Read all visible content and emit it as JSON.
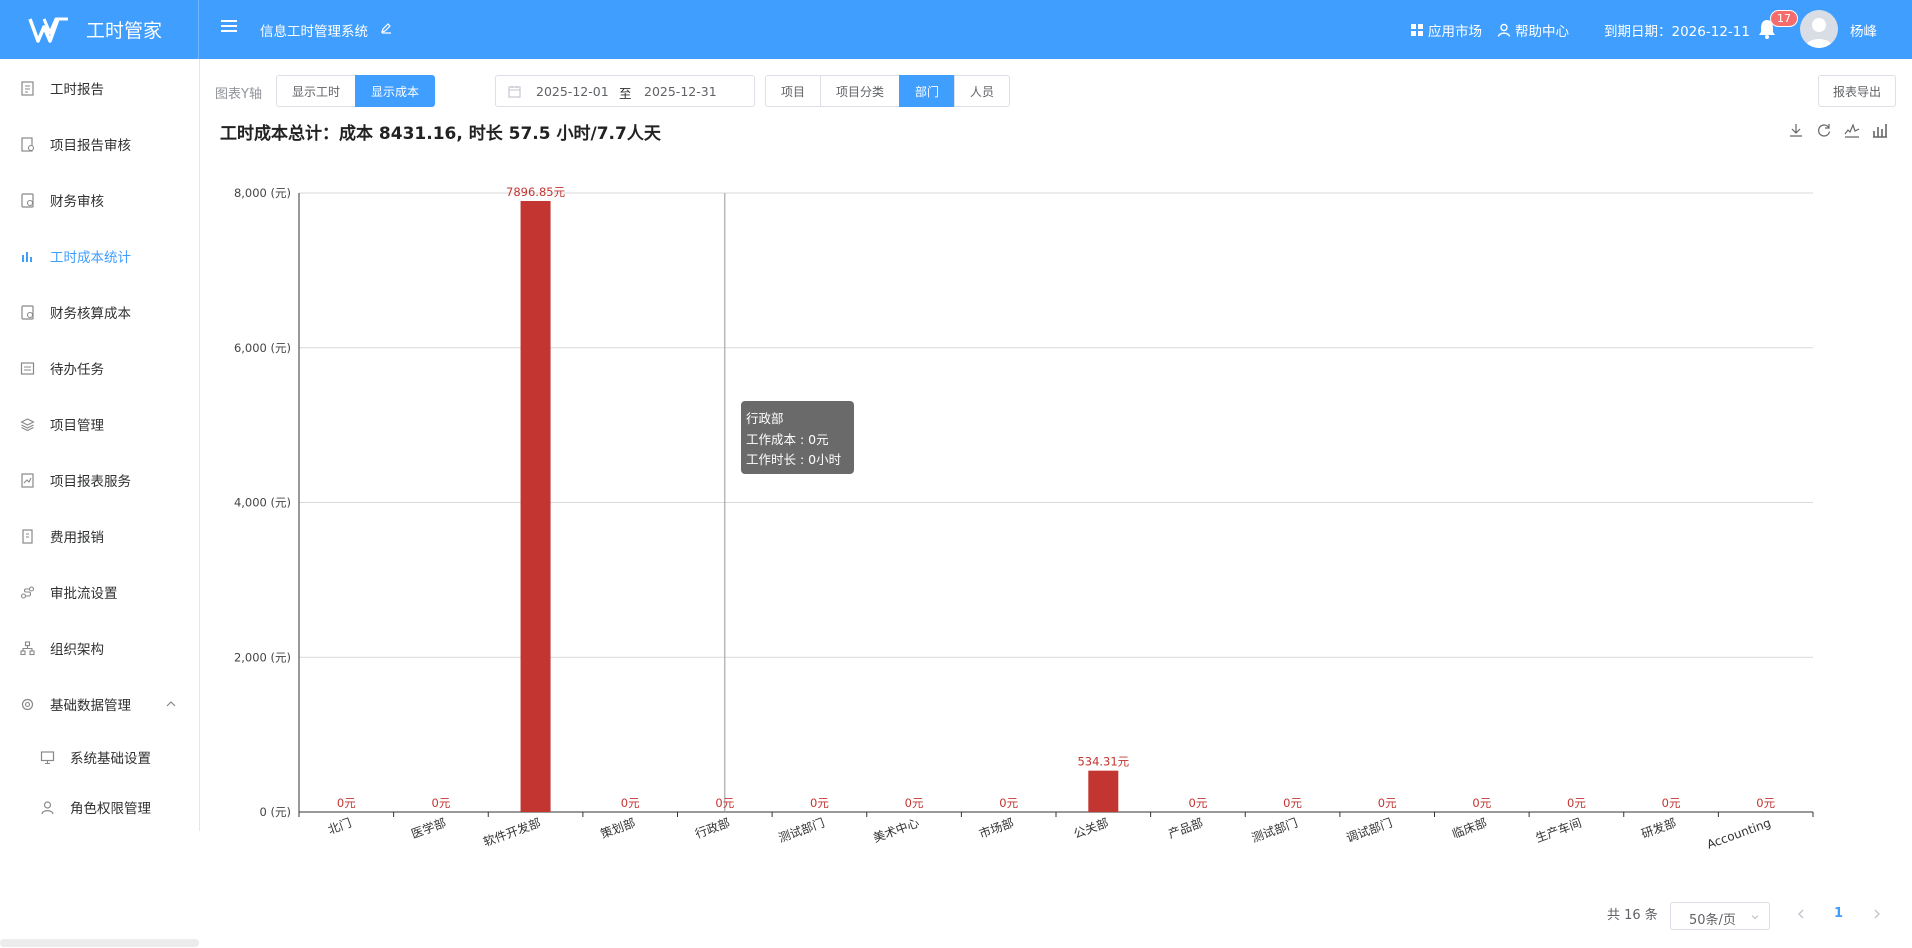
{
  "app": {
    "logo_text": "工时管家",
    "system_title": "信息工时管理系统"
  },
  "header": {
    "app_market": "应用市场",
    "help_center": "帮助中心",
    "expiry": "到期日期：2026-12-11",
    "notification_count": "17",
    "user_name": "杨峰"
  },
  "sidebar": {
    "items": [
      {
        "label": "工时报告",
        "icon": "report-icon",
        "active": false
      },
      {
        "label": "项目报告审核",
        "icon": "audit-icon",
        "active": false
      },
      {
        "label": "财务审核",
        "icon": "finance-icon",
        "active": false
      },
      {
        "label": "工时成本统计",
        "icon": "bar-chart-icon",
        "active": true
      },
      {
        "label": "财务核算成本",
        "icon": "calculator-icon",
        "active": false
      },
      {
        "label": "待办任务",
        "icon": "task-icon",
        "active": false
      },
      {
        "label": "项目管理",
        "icon": "layers-icon",
        "active": false
      },
      {
        "label": "项目报表服务",
        "icon": "chart-report-icon",
        "active": false
      },
      {
        "label": "费用报销",
        "icon": "receipt-icon",
        "active": false
      },
      {
        "label": "审批流设置",
        "icon": "workflow-icon",
        "active": false
      },
      {
        "label": "组织架构",
        "icon": "org-icon",
        "active": false
      },
      {
        "label": "基础数据管理",
        "icon": "gear-icon",
        "active": false
      }
    ],
    "sub_items": [
      {
        "label": "系统基础设置",
        "icon": "monitor-icon"
      },
      {
        "label": "角色权限管理",
        "icon": "user-icon"
      }
    ]
  },
  "toolbar": {
    "y_axis_label": "图表Y轴",
    "y_axis_options": [
      "显示工时",
      "显示成本"
    ],
    "y_axis_selected": 1,
    "date_start": "2025-12-01",
    "date_sep": "至",
    "date_end": "2025-12-31",
    "group_options": [
      "项目",
      "项目分类",
      "部门",
      "人员"
    ],
    "group_selected": 2,
    "export_label": "报表导出"
  },
  "summary": "工时成本总计：成本 8431.16, 时长 57.5 小时/7.7人天",
  "chart_data": {
    "type": "bar",
    "categories": [
      "北门",
      "医学部",
      "软件开发部",
      "策划部",
      "行政部",
      "测试部门",
      "美术中心",
      "市场部",
      "公关部",
      "产品部",
      "测试部门",
      "调试部门",
      "临床部",
      "生产车间",
      "研发部",
      "Accounting"
    ],
    "values": [
      0,
      0,
      7896.85,
      0,
      0,
      0,
      0,
      0,
      534.31,
      0,
      0,
      0,
      0,
      0,
      0,
      0
    ],
    "value_labels": [
      "0元",
      "0元",
      "7896.85元",
      "0元",
      "0元",
      "0元",
      "0元",
      "0元",
      "534.31元",
      "0元",
      "0元",
      "0元",
      "0元",
      "0元",
      "0元",
      "0元"
    ],
    "y_ticks": [
      "0 (元)",
      "2,000 (元)",
      "4,000 (元)",
      "6,000 (元)",
      "8,000 (元)"
    ],
    "ylim": [
      0,
      8000
    ],
    "bar_color": "#c23531",
    "label_color": "#c23531",
    "grid": true,
    "hover_index": 4
  },
  "tooltip": {
    "title": "行政部",
    "line1": "工作成本 : 0元",
    "line2": "工作时长 : 0小时"
  },
  "pagination": {
    "total": "共 16 条",
    "page_size": "50条/页",
    "current_page": "1"
  },
  "colors": {
    "primary": "#409eff",
    "badge": "#f56c6c"
  }
}
